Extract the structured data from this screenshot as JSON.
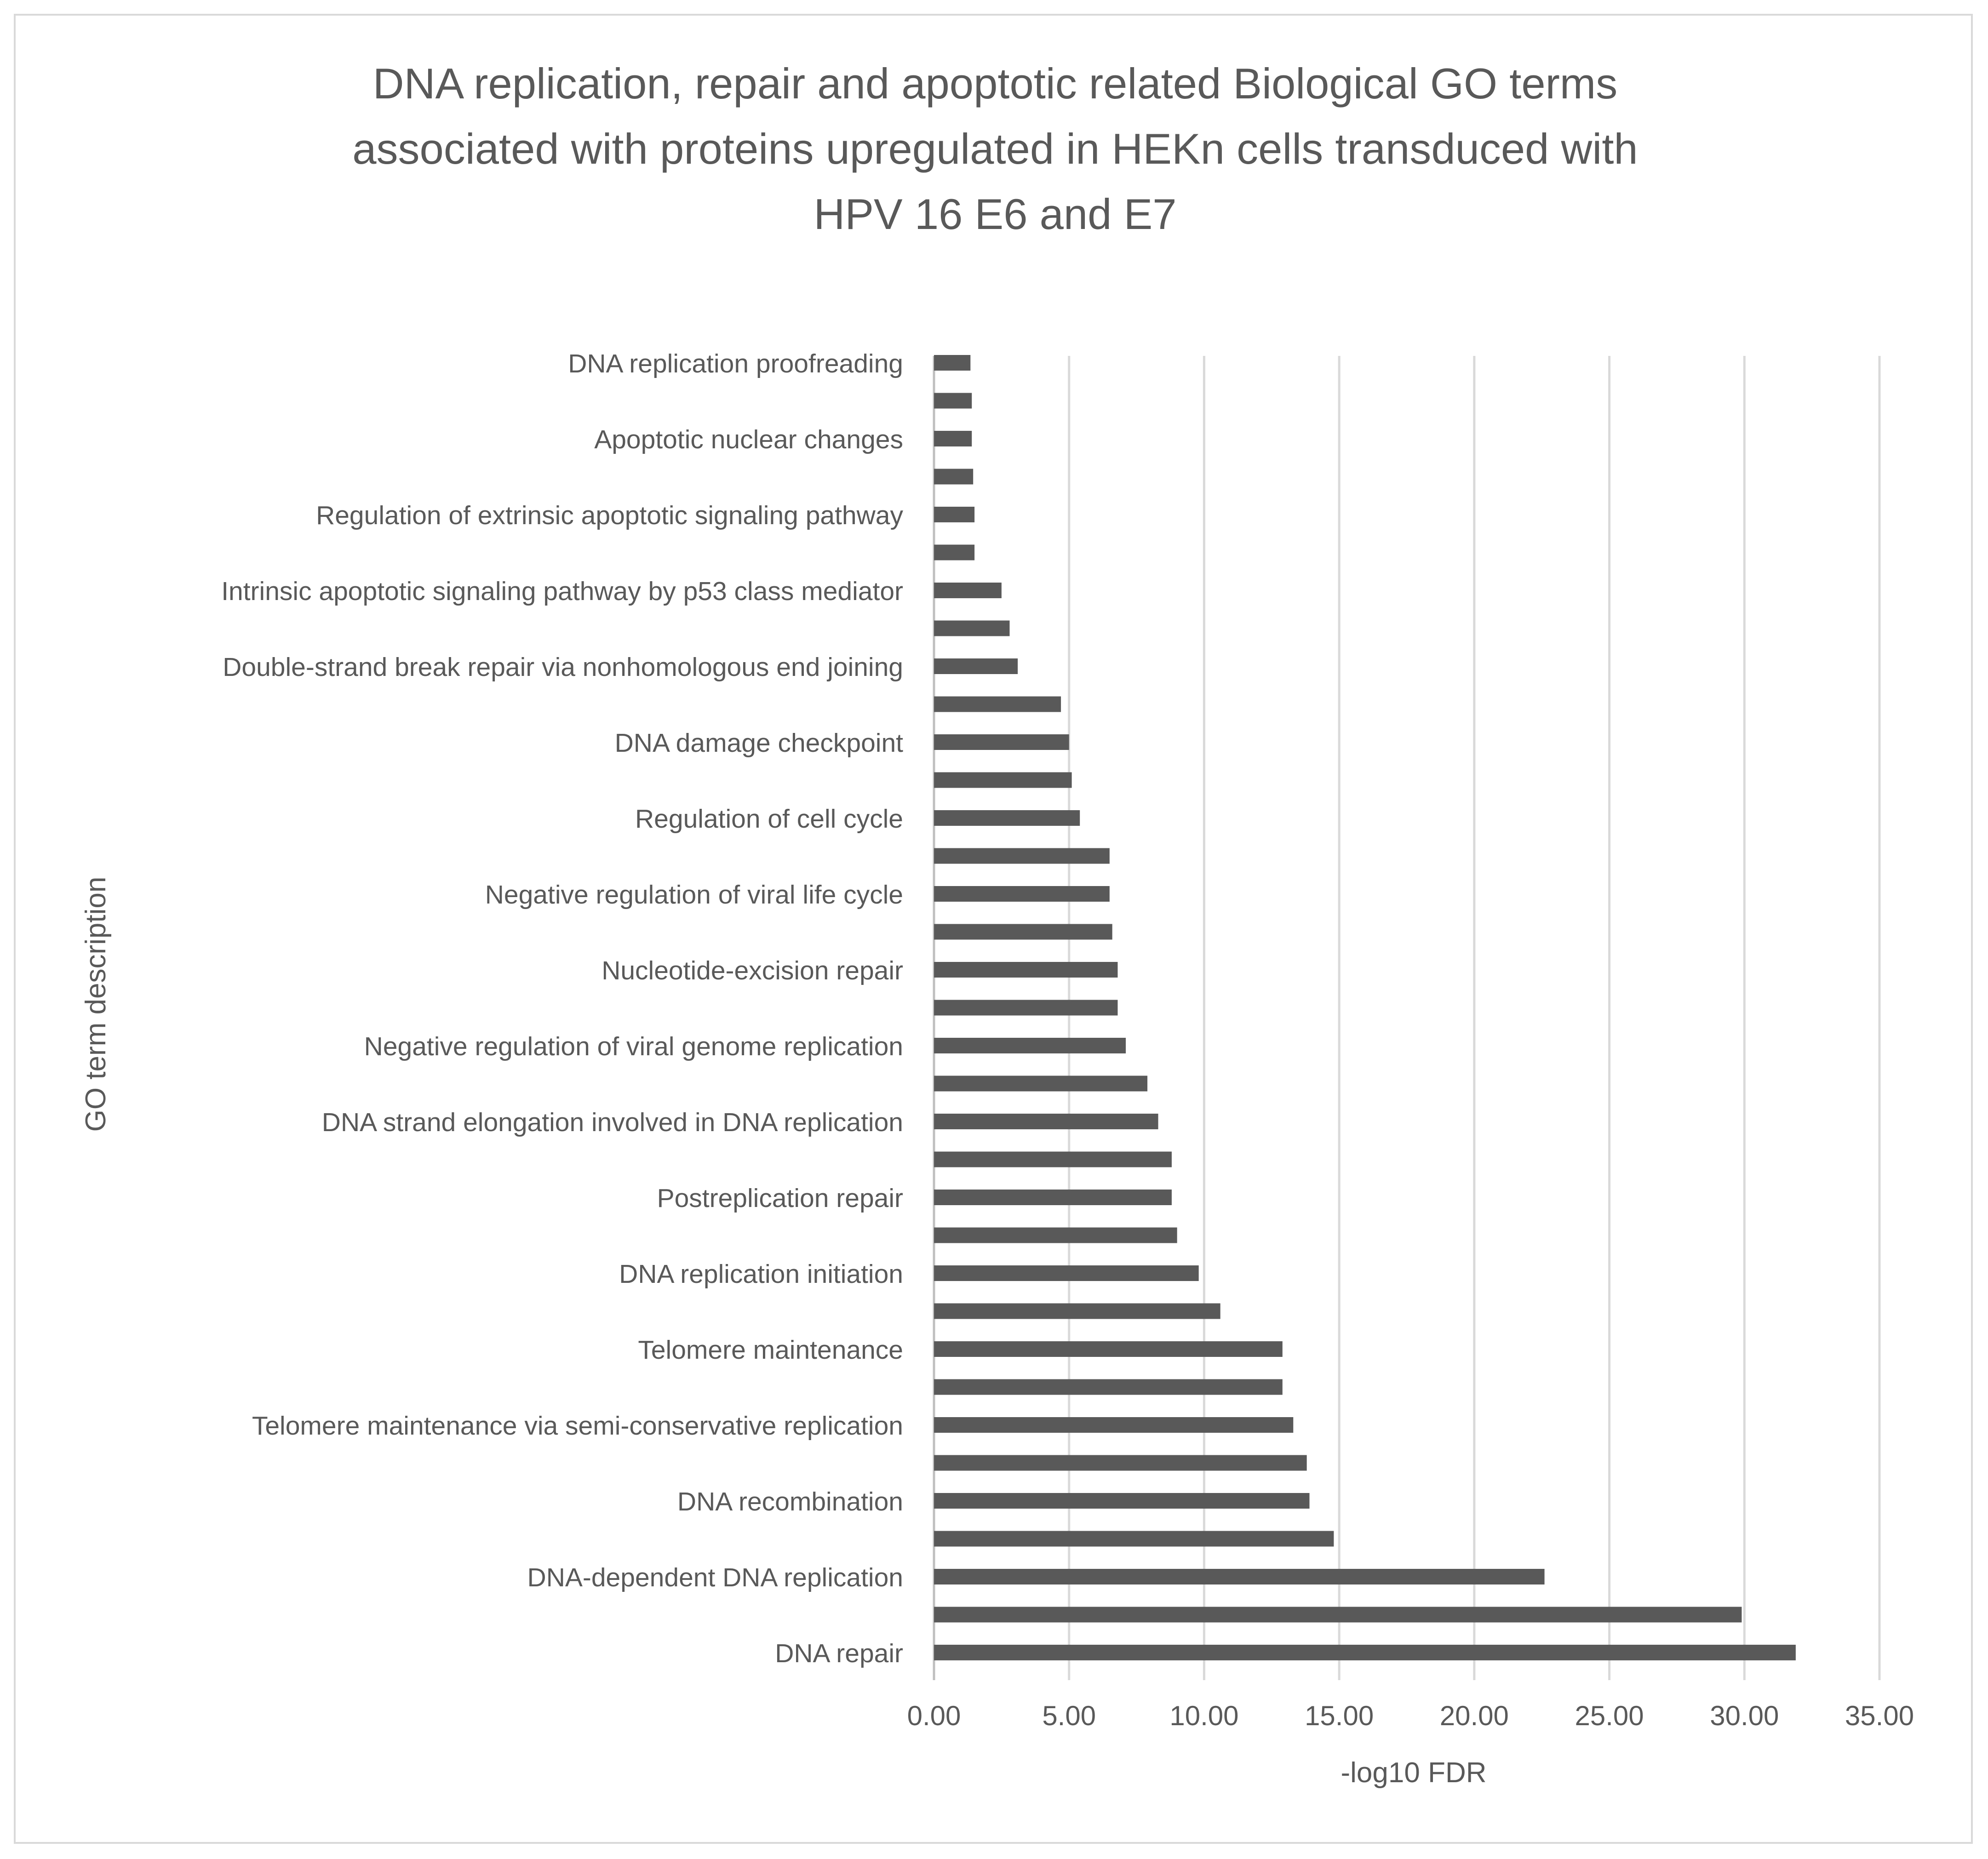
{
  "chart_data": {
    "type": "bar",
    "orientation": "horizontal",
    "title": "DNA replication, repair and apoptotic related Biological GO terms associated with proteins upregulated in HEKn cells transduced with HPV 16 E6 and E7",
    "title_lines": [
      "DNA replication, repair and apoptotic related Biological GO terms",
      "associated with proteins upregulated in HEKn cells transduced with",
      "HPV 16 E6 and E7"
    ],
    "xlabel": "-log10 FDR",
    "ylabel": "GO term description",
    "xlim": [
      0,
      35
    ],
    "xticks": [
      0,
      5,
      10,
      15,
      20,
      25,
      30,
      35
    ],
    "xtick_labels": [
      "0.00",
      "5.00",
      "10.00",
      "15.00",
      "20.00",
      "25.00",
      "30.00",
      "35.00"
    ],
    "grid": "vertical",
    "legend": "none",
    "bar_color": "#595959",
    "categories": [
      "DNA repair",
      "",
      "DNA-dependent DNA replication",
      "",
      "DNA recombination",
      "",
      "Telomere maintenance via semi-conservative replication",
      "",
      "Telomere maintenance",
      "",
      "DNA replication initiation",
      "",
      "Postreplication repair",
      "",
      "DNA strand elongation involved in DNA replication",
      "",
      "Negative regulation of viral genome replication",
      "",
      "Nucleotide-excision repair",
      "",
      "Negative regulation of viral life cycle",
      "",
      "Regulation of cell cycle",
      "",
      "DNA damage checkpoint",
      "",
      "Double-strand break repair via nonhomologous end joining",
      "",
      "Intrinsic apoptotic signaling pathway by p53 class mediator",
      "",
      "Regulation of extrinsic apoptotic signaling pathway",
      "",
      "Apoptotic nuclear changes",
      "",
      "DNA replication proofreading"
    ],
    "values": [
      31.9,
      29.9,
      22.6,
      14.8,
      13.9,
      13.8,
      13.3,
      12.9,
      12.9,
      10.6,
      9.8,
      9.0,
      8.8,
      8.8,
      8.3,
      7.9,
      7.1,
      6.8,
      6.8,
      6.6,
      6.5,
      6.5,
      5.4,
      5.1,
      5.0,
      4.7,
      3.1,
      2.8,
      2.5,
      1.5,
      1.5,
      1.45,
      1.4,
      1.4,
      1.35
    ]
  }
}
